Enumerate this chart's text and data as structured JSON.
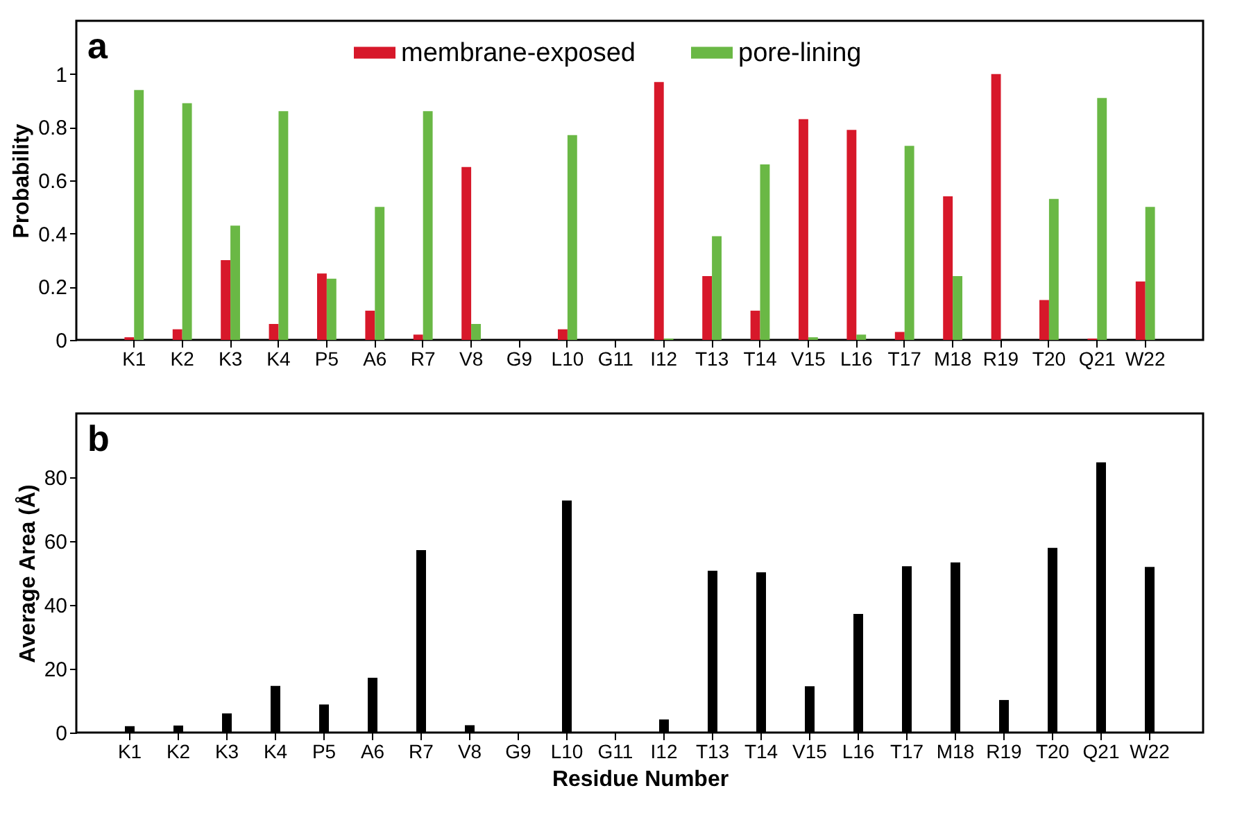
{
  "chart_data": [
    {
      "type": "bar",
      "ylabel": "Probability",
      "annotations": [
        "a"
      ],
      "categories": [
        "K1",
        "K2",
        "K3",
        "K4",
        "P5",
        "A6",
        "R7",
        "V8",
        "G9",
        "L10",
        "G11",
        "I12",
        "T13",
        "T14",
        "V15",
        "L16",
        "T17",
        "M18",
        "R19",
        "T20",
        "Q21",
        "W22"
      ],
      "series": [
        {
          "name": "membrane-exposed",
          "color": "#d7182a",
          "values": [
            0.01,
            0.04,
            0.3,
            0.06,
            0.25,
            0.11,
            0.02,
            0.65,
            0,
            0.04,
            0,
            0.97,
            0.24,
            0.11,
            0.83,
            0.79,
            0.03,
            0.54,
            1.0,
            0.15,
            0.005,
            0.22
          ]
        },
        {
          "name": "pore-lining",
          "color": "#6ab845",
          "values": [
            0.94,
            0.89,
            0.43,
            0.86,
            0.23,
            0.5,
            0.86,
            0.06,
            0,
            0.77,
            0,
            0.005,
            0.39,
            0.66,
            0.01,
            0.02,
            0.73,
            0.24,
            0,
            0.53,
            0.91,
            0.5
          ]
        }
      ],
      "ylim": [
        0,
        1.2
      ],
      "yticks": [
        0,
        0.2,
        0.4,
        0.6,
        0.8,
        1
      ],
      "legend": "top",
      "grid": false
    },
    {
      "type": "bar",
      "ylabel": "Average Area (Å)",
      "xlabel": "Residue Number",
      "annotations": [
        "b"
      ],
      "categories": [
        "K1",
        "K2",
        "K3",
        "K4",
        "P5",
        "A6",
        "R7",
        "V8",
        "G9",
        "L10",
        "G11",
        "I12",
        "T13",
        "T14",
        "V15",
        "L16",
        "T17",
        "M18",
        "R19",
        "T20",
        "Q21",
        "W22"
      ],
      "series": [
        {
          "color": "#000000",
          "values": [
            2,
            2.2,
            6,
            14.6,
            8.8,
            17.2,
            57.2,
            2.3,
            0,
            72.7,
            0,
            4.1,
            50.7,
            50.2,
            14.5,
            37.2,
            52.1,
            53.3,
            10.2,
            57.9,
            84.7,
            51.9
          ]
        }
      ],
      "ylim": [
        0,
        100
      ],
      "yticks": [
        0,
        20,
        40,
        60,
        80
      ],
      "grid": false
    }
  ]
}
